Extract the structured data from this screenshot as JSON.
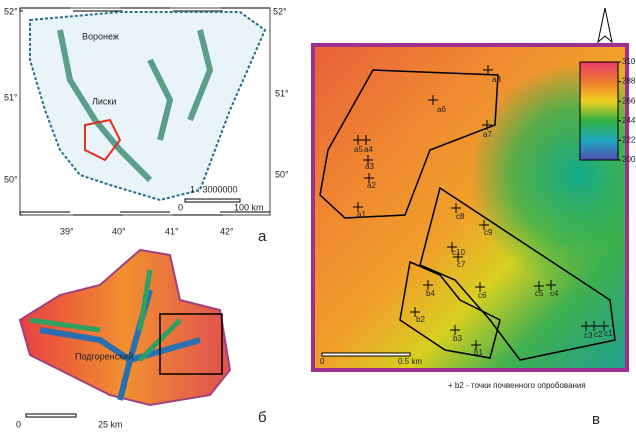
{
  "panel_a": {
    "lat_top_left": "52°",
    "lat_top_right": "52°",
    "lat_mid_left": "51°",
    "lat_mid_right": "51°",
    "lat_bottom_left": "50°",
    "lat_bottom_right": "50°",
    "city_1": "Воронеж",
    "city_2": "Лиски",
    "scale_ratio": "1 : 3000000",
    "scale_zero": "0",
    "scale_end": "100 km",
    "lon_labels": [
      "39°",
      "40°",
      "41°",
      "42°"
    ],
    "letter": "а"
  },
  "panel_b": {
    "district": "Подгоренский",
    "scale_zero": "0",
    "scale_end": "25 km",
    "letter": "б"
  },
  "panel_c": {
    "colorbar": {
      "ticks": [
        310,
        288,
        266,
        244,
        222,
        200
      ]
    },
    "points": [
      "a8",
      "a6",
      "a7",
      "a5",
      "a4",
      "a3",
      "a2",
      "a1",
      "c8",
      "c9",
      "c10",
      "c7",
      "c6",
      "c5",
      "c4",
      "c3",
      "c2",
      "c1",
      "b4",
      "b2",
      "b3",
      "b1"
    ],
    "scale_zero": "0",
    "scale_end": "0.5 km",
    "legend": "+ b2 -  точки почвенного опробования",
    "letter": "в"
  }
}
